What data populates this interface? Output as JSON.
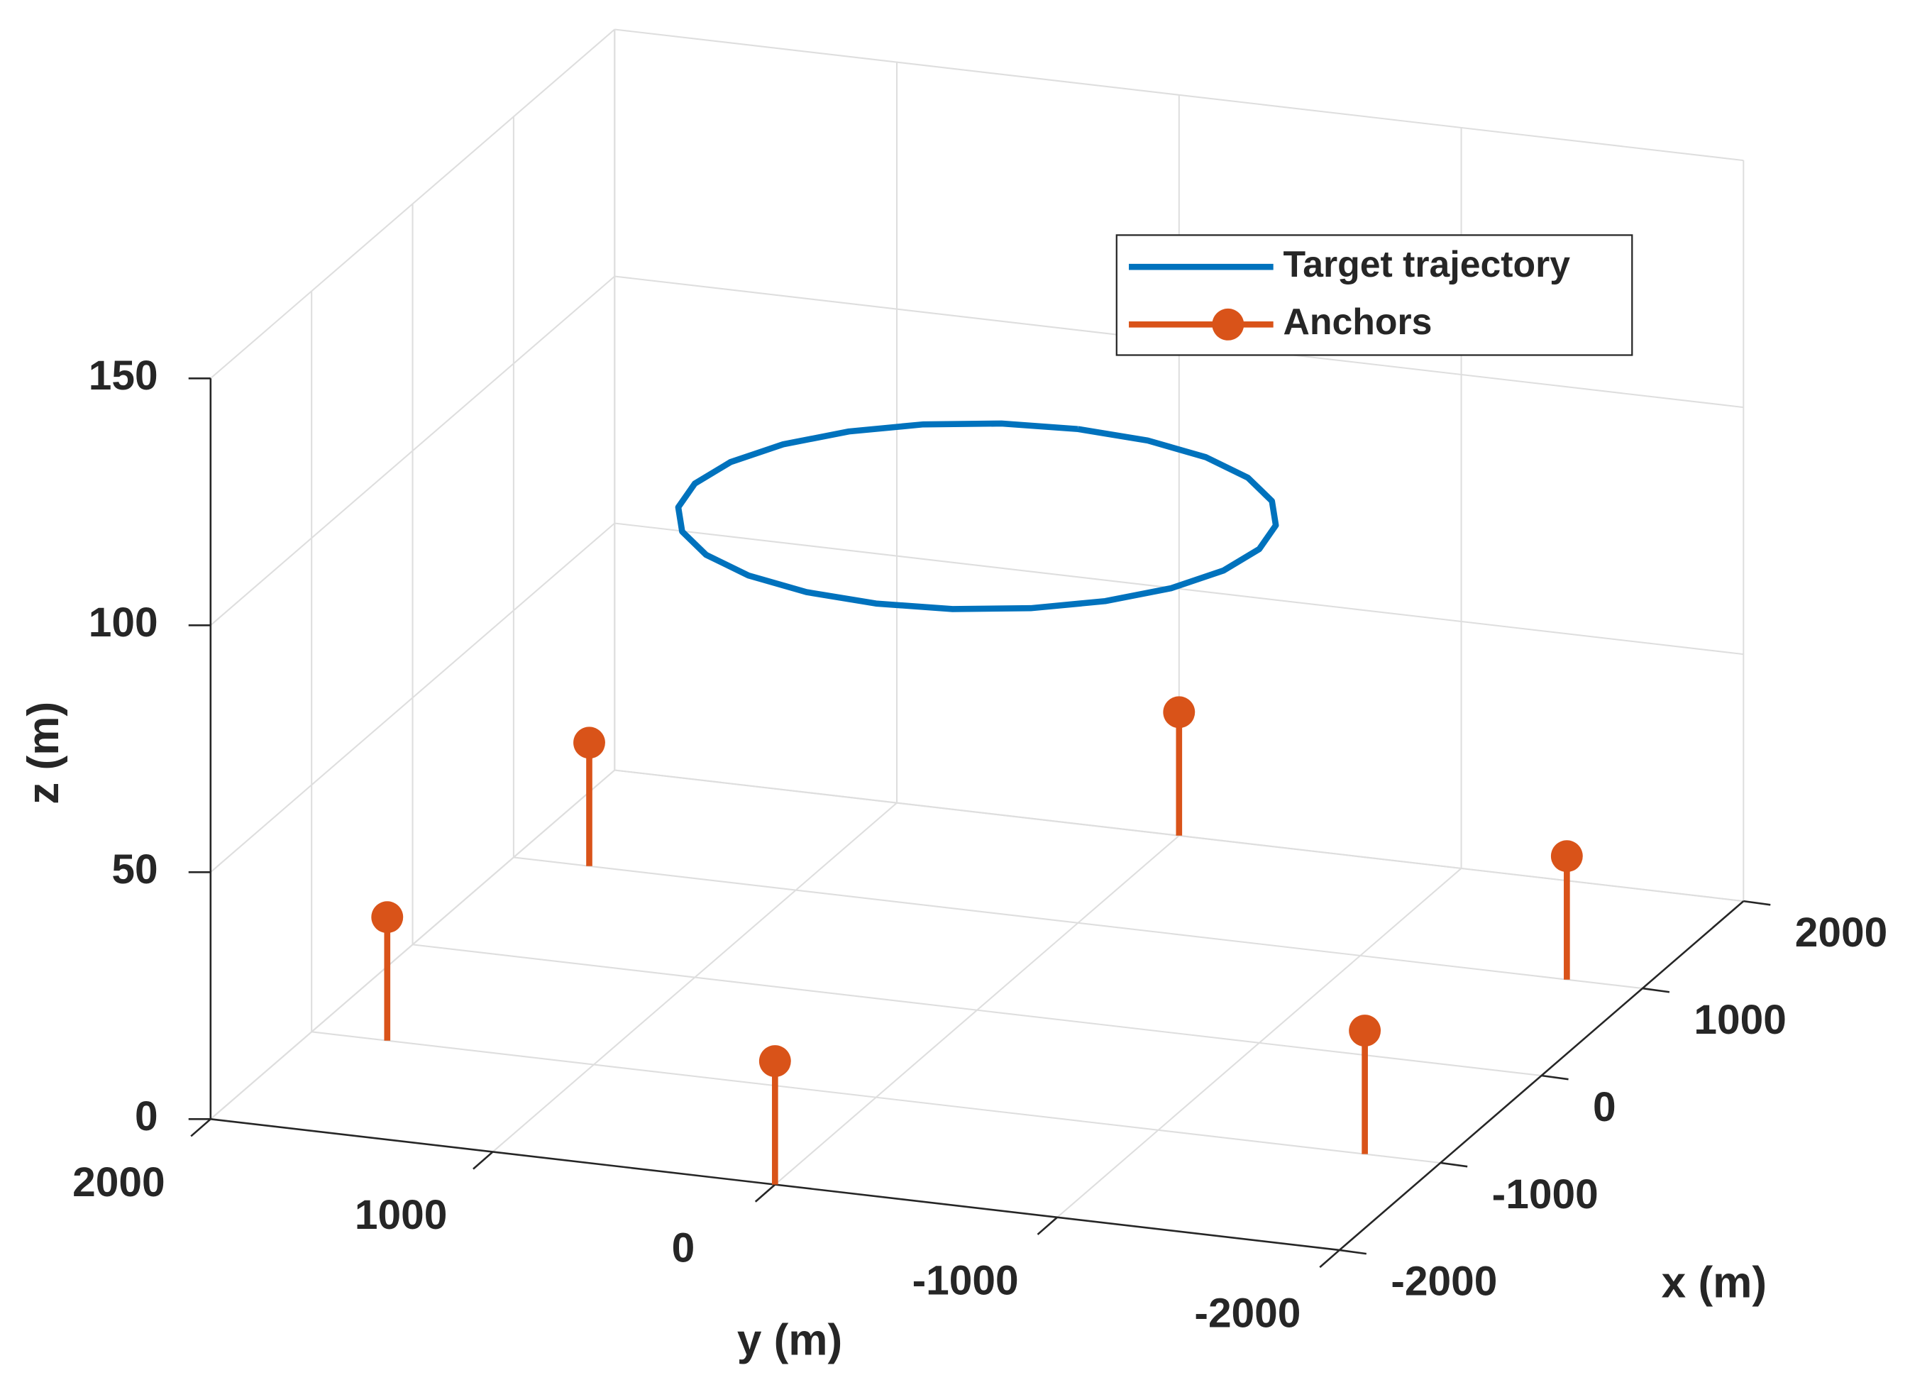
{
  "chart_data": {
    "type": "line3",
    "xlabel": "x (m)",
    "ylabel": "y (m)",
    "zlabel": "z (m)",
    "xlim": [
      -2000,
      2000
    ],
    "ylim": [
      -2000,
      2000
    ],
    "zlim": [
      0,
      150
    ],
    "xticks": [
      -2000,
      -1000,
      0,
      1000,
      2000
    ],
    "yticks": [
      -2000,
      -1000,
      0,
      1000,
      2000
    ],
    "zticks": [
      0,
      50,
      100,
      150
    ],
    "grid": true,
    "legend": "northeast",
    "series": [
      {
        "name": "Target trajectory",
        "type": "line",
        "color": "#0072BD",
        "x": [
          1000,
          966,
          866,
          707,
          500,
          259,
          0,
          -259,
          -500,
          -707,
          -866,
          -966,
          -1000,
          -966,
          -866,
          -707,
          -500,
          -259,
          0,
          259,
          500,
          707,
          866,
          966,
          1000
        ],
        "y": [
          0,
          259,
          500,
          707,
          866,
          966,
          1000,
          966,
          866,
          707,
          500,
          259,
          0,
          -259,
          -500,
          -707,
          -866,
          -966,
          -1000,
          -966,
          -866,
          -707,
          -500,
          -259,
          0
        ],
        "z": [
          100,
          100,
          100,
          100,
          100,
          100,
          100,
          100,
          100,
          100,
          100,
          100,
          100,
          100,
          100,
          100,
          100,
          100,
          100,
          100,
          100,
          100,
          100,
          100,
          100
        ]
      },
      {
        "name": "Anchors",
        "type": "stem",
        "color": "#D95319",
        "x": [
          1000,
          -1000,
          -2000,
          2000,
          1000,
          -1000
        ],
        "y": [
          1732,
          1732,
          0,
          0,
          -1732,
          -1732
        ],
        "z": [
          25,
          25,
          25,
          25,
          25,
          25
        ]
      }
    ]
  }
}
